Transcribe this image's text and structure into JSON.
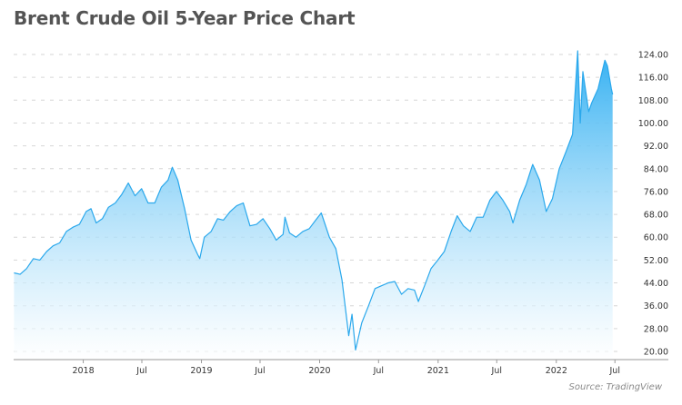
{
  "title": "Brent Crude Oil 5-Year Price Chart",
  "source": "Source: TradingView",
  "colors": {
    "line": "#2aa8ec",
    "fill_top": "#33b0f2",
    "fill_bottom": "#ffffff",
    "grid": "#d6d6d6",
    "text": "#333333",
    "title": "#545454"
  },
  "chart_data": {
    "type": "area",
    "title": "Brent Crude Oil 5-Year Price Chart",
    "xlabel": "",
    "ylabel": "",
    "ylim": [
      20,
      124
    ],
    "xlim": [
      "2017-05-31",
      "2022-07-20"
    ],
    "y_ticks": [
      "124.00",
      "116.00",
      "108.00",
      "100.00",
      "92.00",
      "84.00",
      "76.00",
      "68.00",
      "60.00",
      "52.00",
      "44.00",
      "36.00",
      "28.00",
      "20.00"
    ],
    "x_ticks": [
      {
        "date": "2018-01-01",
        "label": "2018"
      },
      {
        "date": "2018-07-01",
        "label": "Jul"
      },
      {
        "date": "2019-01-01",
        "label": "2019"
      },
      {
        "date": "2019-07-01",
        "label": "Jul"
      },
      {
        "date": "2020-01-01",
        "label": "2020"
      },
      {
        "date": "2020-07-01",
        "label": "Jul"
      },
      {
        "date": "2021-01-01",
        "label": "2021"
      },
      {
        "date": "2021-07-01",
        "label": "Jul"
      },
      {
        "date": "2022-01-01",
        "label": "2022"
      },
      {
        "date": "2022-07-01",
        "label": "Jul"
      }
    ],
    "grid": "horizontal dashed",
    "y_axis_position": "right",
    "series": [
      {
        "x": [
          "2017-06-01",
          "2017-06-20",
          "2017-07-10",
          "2017-07-31",
          "2017-08-20",
          "2017-09-10",
          "2017-09-30",
          "2017-10-20",
          "2017-11-10",
          "2017-11-30",
          "2017-12-20",
          "2018-01-10",
          "2018-01-25",
          "2018-02-10",
          "2018-03-01",
          "2018-03-20",
          "2018-04-10",
          "2018-04-30",
          "2018-05-20",
          "2018-06-10",
          "2018-06-30",
          "2018-07-20",
          "2018-08-10",
          "2018-08-30",
          "2018-09-20",
          "2018-10-03",
          "2018-10-20",
          "2018-11-10",
          "2018-11-30",
          "2018-12-20",
          "2018-12-27",
          "2019-01-10",
          "2019-01-31",
          "2019-02-20",
          "2019-03-10",
          "2019-03-31",
          "2019-04-20",
          "2019-05-10",
          "2019-05-31",
          "2019-06-20",
          "2019-07-10",
          "2019-07-31",
          "2019-08-20",
          "2019-09-10",
          "2019-09-16",
          "2019-09-30",
          "2019-10-20",
          "2019-11-10",
          "2019-11-30",
          "2019-12-20",
          "2020-01-06",
          "2020-01-31",
          "2020-02-20",
          "2020-03-10",
          "2020-03-31",
          "2020-04-10",
          "2020-04-21",
          "2020-05-10",
          "2020-05-31",
          "2020-06-20",
          "2020-07-10",
          "2020-07-31",
          "2020-08-20",
          "2020-09-10",
          "2020-09-30",
          "2020-10-20",
          "2020-11-01",
          "2020-11-20",
          "2020-12-10",
          "2020-12-31",
          "2021-01-20",
          "2021-02-10",
          "2021-03-01",
          "2021-03-20",
          "2021-04-10",
          "2021-04-30",
          "2021-05-20",
          "2021-06-10",
          "2021-06-30",
          "2021-07-20",
          "2021-08-10",
          "2021-08-20",
          "2021-09-10",
          "2021-09-30",
          "2021-10-20",
          "2021-11-10",
          "2021-12-01",
          "2021-12-20",
          "2022-01-10",
          "2022-01-31",
          "2022-02-20",
          "2022-03-08",
          "2022-03-16",
          "2022-03-24",
          "2022-04-11",
          "2022-04-20",
          "2022-05-10",
          "2022-05-31",
          "2022-06-08",
          "2022-06-20",
          "2022-06-24"
        ],
        "y": [
          47.5,
          47,
          49,
          52.5,
          52,
          55,
          57,
          58,
          62,
          63.5,
          64.5,
          69,
          70,
          65,
          66.5,
          70.5,
          72,
          75,
          79,
          74.5,
          77,
          72,
          72,
          77.5,
          80,
          84.5,
          80,
          70,
          59,
          54,
          52.5,
          60,
          62,
          66.5,
          66,
          69,
          71,
          72,
          64,
          64.5,
          66.5,
          63,
          59,
          61,
          67,
          61.5,
          60,
          62,
          63,
          66,
          68.5,
          60,
          56,
          45,
          25.5,
          33,
          20.5,
          30,
          36,
          42,
          43,
          44,
          44.5,
          40,
          42,
          41.5,
          37.5,
          43,
          49,
          52,
          55,
          62,
          67.5,
          64,
          62,
          67,
          67,
          73,
          76,
          73,
          69,
          65,
          73,
          78.5,
          85.5,
          80,
          69,
          73.5,
          84,
          90,
          96,
          127,
          100,
          118,
          104,
          107,
          112,
          122,
          120,
          112,
          110
        ]
      }
    ]
  }
}
